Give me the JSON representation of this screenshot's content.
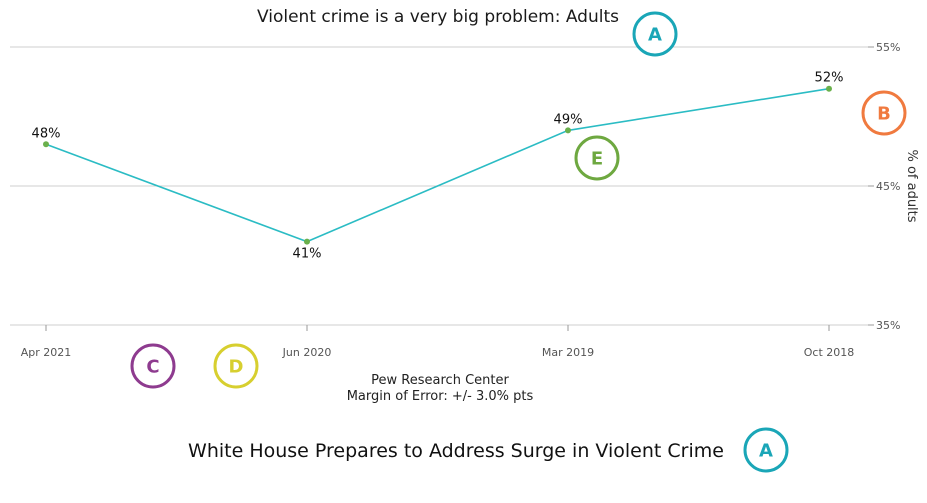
{
  "chart_data": {
    "type": "line",
    "title": "Violent crime is a very big problem: Adults",
    "categories": [
      "Apr 2021",
      "Jun 2020",
      "Mar 2019",
      "Oct 2018"
    ],
    "values": [
      48,
      41,
      49,
      52
    ],
    "data_labels": [
      "48%",
      "41%",
      "49%",
      "52%"
    ],
    "ylabel": "% of adults",
    "ylim": [
      35,
      55
    ],
    "yticks": [
      35,
      45,
      55
    ],
    "ytick_labels": [
      "35%",
      "45%",
      "55%"
    ],
    "y_axis_side": "right",
    "grid": true,
    "line_color": "#2bbcc4",
    "point_color": "#6ab04c"
  },
  "source": {
    "line1": "Pew Research Center",
    "line2": "Margin of Error: +/- 3.0% pts"
  },
  "headline": "White House Prepares to Address Surge in Violent Crime",
  "badges": [
    {
      "letter": "A",
      "color": "#1aa6b7"
    },
    {
      "letter": "B",
      "color": "#f07a3f"
    },
    {
      "letter": "C",
      "color": "#8e3b8f"
    },
    {
      "letter": "D",
      "color": "#d7cf2f"
    },
    {
      "letter": "E",
      "color": "#6ea840"
    },
    {
      "letter": "A",
      "color": "#1aa6b7"
    }
  ]
}
